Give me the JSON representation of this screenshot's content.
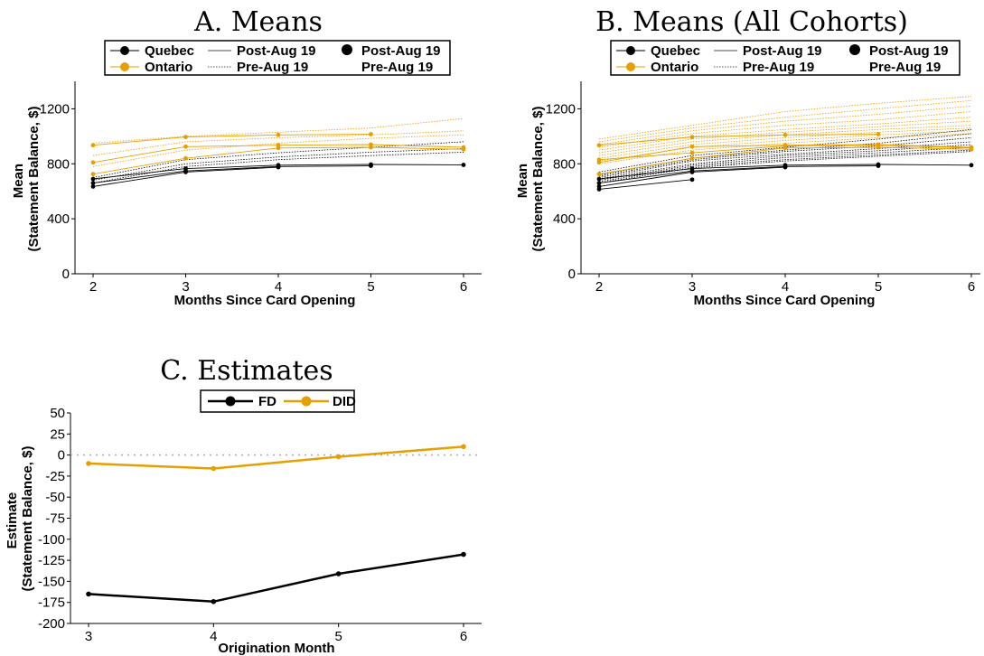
{
  "colors": {
    "quebec": "#000000",
    "ontario": "#E69F00",
    "zero_line": "#aaaaaa"
  },
  "legend_ab": {
    "quebec": "Quebec",
    "ontario": "Ontario",
    "post_line": "Post-Aug 19",
    "pre_line": "Pre-Aug 19",
    "post_dot": "Post-Aug 19",
    "pre_dot": "Pre-Aug 19"
  },
  "chart_data": [
    {
      "id": "A",
      "type": "line",
      "title": "A. Means",
      "xlabel": "Months Since Card Opening",
      "ylabel": "Mean\n(Statement Balance, $)",
      "xlim": [
        2,
        6
      ],
      "ylim": [
        0,
        1400
      ],
      "xticks": [
        "2",
        "3",
        "4",
        "5",
        "6"
      ],
      "yticks": [
        "0",
        "400",
        "800",
        "1200"
      ],
      "grid": false,
      "legend": "top",
      "series": [
        {
          "group": "quebec",
          "style": "post",
          "x": [
            2,
            3,
            4,
            5,
            6
          ],
          "y": [
            690,
            765,
            790,
            795,
            792
          ]
        },
        {
          "group": "quebec",
          "style": "post",
          "x": [
            2,
            3,
            4,
            5
          ],
          "y": [
            660,
            748,
            780,
            785
          ]
        },
        {
          "group": "quebec",
          "style": "post",
          "x": [
            2,
            3,
            4
          ],
          "y": [
            635,
            740,
            775
          ]
        },
        {
          "group": "quebec",
          "style": "pre",
          "x": [
            2,
            3,
            4,
            5,
            6
          ],
          "y": [
            700,
            830,
            880,
            920,
            960
          ]
        },
        {
          "group": "quebec",
          "style": "pre",
          "x": [
            2,
            3,
            4,
            5,
            6
          ],
          "y": [
            680,
            800,
            850,
            885,
            910
          ]
        },
        {
          "group": "quebec",
          "style": "pre",
          "x": [
            2,
            3,
            4,
            5,
            6
          ],
          "y": [
            660,
            780,
            830,
            860,
            885
          ]
        },
        {
          "group": "ontario",
          "style": "post",
          "x": [
            2,
            3,
            4,
            5
          ],
          "y": [
            935,
            995,
            1010,
            1015
          ]
        },
        {
          "group": "ontario",
          "style": "post",
          "x": [
            2,
            3,
            4,
            5,
            6
          ],
          "y": [
            810,
            925,
            935,
            940,
            920
          ]
        },
        {
          "group": "ontario",
          "style": "post",
          "x": [
            2,
            3,
            4,
            5,
            6
          ],
          "y": [
            725,
            840,
            915,
            920,
            905
          ]
        },
        {
          "group": "ontario",
          "style": "pre",
          "x": [
            2,
            3,
            4,
            5,
            6
          ],
          "y": [
            950,
            1000,
            1030,
            1060,
            1130
          ]
        },
        {
          "group": "ontario",
          "style": "pre",
          "x": [
            2,
            3,
            4,
            5,
            6
          ],
          "y": [
            860,
            960,
            990,
            1010,
            1040
          ]
        },
        {
          "group": "ontario",
          "style": "pre",
          "x": [
            2,
            3,
            4,
            5,
            6
          ],
          "y": [
            780,
            900,
            950,
            985,
            1010
          ]
        }
      ]
    },
    {
      "id": "B",
      "type": "line",
      "title": "B. Means (All Cohorts)",
      "xlabel": "Months Since Card Opening",
      "ylabel": "Mean\n(Statement Balance, $)",
      "xlim": [
        2,
        6
      ],
      "ylim": [
        0,
        1400
      ],
      "xticks": [
        "2",
        "3",
        "4",
        "5",
        "6"
      ],
      "yticks": [
        "0",
        "400",
        "800",
        "1200"
      ],
      "grid": false,
      "legend": "top",
      "series": [
        {
          "group": "quebec",
          "style": "post",
          "x": [
            2,
            3,
            4,
            5,
            6
          ],
          "y": [
            690,
            765,
            790,
            795,
            790
          ]
        },
        {
          "group": "quebec",
          "style": "post",
          "x": [
            2,
            3,
            4,
            5
          ],
          "y": [
            660,
            748,
            780,
            785
          ]
        },
        {
          "group": "quebec",
          "style": "post",
          "x": [
            2,
            3,
            4
          ],
          "y": [
            635,
            740,
            775
          ]
        },
        {
          "group": "quebec",
          "style": "post",
          "x": [
            2,
            3
          ],
          "y": [
            615,
            685
          ]
        },
        {
          "group": "quebec",
          "style": "pre",
          "x": [
            2,
            3,
            4,
            5,
            6
          ],
          "y": [
            740,
            860,
            920,
            980,
            1050
          ]
        },
        {
          "group": "quebec",
          "style": "pre",
          "x": [
            2,
            3,
            4,
            5,
            6
          ],
          "y": [
            720,
            840,
            900,
            950,
            1020
          ]
        },
        {
          "group": "quebec",
          "style": "pre",
          "x": [
            2,
            3,
            4,
            5,
            6
          ],
          "y": [
            710,
            830,
            890,
            930,
            990
          ]
        },
        {
          "group": "quebec",
          "style": "pre",
          "x": [
            2,
            3,
            4,
            5,
            6
          ],
          "y": [
            700,
            820,
            870,
            910,
            960
          ]
        },
        {
          "group": "quebec",
          "style": "pre",
          "x": [
            2,
            3,
            4,
            5,
            6
          ],
          "y": [
            690,
            800,
            860,
            895,
            940
          ]
        },
        {
          "group": "quebec",
          "style": "pre",
          "x": [
            2,
            3,
            4,
            5,
            6
          ],
          "y": [
            680,
            790,
            845,
            880,
            920
          ]
        },
        {
          "group": "quebec",
          "style": "pre",
          "x": [
            2,
            3,
            4,
            5,
            6
          ],
          "y": [
            670,
            780,
            830,
            865,
            900
          ]
        },
        {
          "group": "quebec",
          "style": "pre",
          "x": [
            2,
            3,
            4,
            5,
            6
          ],
          "y": [
            660,
            770,
            820,
            855,
            890
          ]
        },
        {
          "group": "ontario",
          "style": "post",
          "x": [
            2,
            3,
            4,
            5
          ],
          "y": [
            935,
            995,
            1010,
            1015
          ]
        },
        {
          "group": "ontario",
          "style": "post",
          "x": [
            2,
            3,
            4,
            5,
            6
          ],
          "y": [
            810,
            925,
            935,
            940,
            920
          ]
        },
        {
          "group": "ontario",
          "style": "post",
          "x": [
            2,
            3,
            4,
            5,
            6
          ],
          "y": [
            725,
            840,
            915,
            920,
            905
          ]
        },
        {
          "group": "ontario",
          "style": "post",
          "x": [
            2,
            3,
            4,
            5,
            6
          ],
          "y": [
            830,
            880,
            930,
            935,
            915
          ]
        },
        {
          "group": "ontario",
          "style": "pre",
          "x": [
            2,
            3,
            4,
            5,
            6
          ],
          "y": [
            980,
            1080,
            1180,
            1240,
            1290
          ]
        },
        {
          "group": "ontario",
          "style": "pre",
          "x": [
            2,
            3,
            4,
            5,
            6
          ],
          "y": [
            960,
            1060,
            1140,
            1200,
            1260
          ]
        },
        {
          "group": "ontario",
          "style": "pre",
          "x": [
            2,
            3,
            4,
            5,
            6
          ],
          "y": [
            940,
            1040,
            1110,
            1160,
            1220
          ]
        },
        {
          "group": "ontario",
          "style": "pre",
          "x": [
            2,
            3,
            4,
            5,
            6
          ],
          "y": [
            920,
            1020,
            1080,
            1120,
            1180
          ]
        },
        {
          "group": "ontario",
          "style": "pre",
          "x": [
            2,
            3,
            4,
            5,
            6
          ],
          "y": [
            900,
            1000,
            1050,
            1090,
            1140
          ]
        },
        {
          "group": "ontario",
          "style": "pre",
          "x": [
            2,
            3,
            4,
            5,
            6
          ],
          "y": [
            880,
            980,
            1030,
            1070,
            1110
          ]
        },
        {
          "group": "ontario",
          "style": "pre",
          "x": [
            2,
            3,
            4,
            5,
            6
          ],
          "y": [
            860,
            960,
            1010,
            1050,
            1080
          ]
        },
        {
          "group": "ontario",
          "style": "pre",
          "x": [
            2,
            3,
            4,
            5,
            6
          ],
          "y": [
            840,
            940,
            990,
            1030,
            1060
          ]
        },
        {
          "group": "ontario",
          "style": "pre",
          "x": [
            2,
            3,
            4,
            5,
            6
          ],
          "y": [
            820,
            920,
            970,
            1010,
            1040
          ]
        },
        {
          "group": "ontario",
          "style": "pre",
          "x": [
            2,
            3,
            4,
            5,
            6
          ],
          "y": [
            800,
            900,
            950,
            990,
            1020
          ]
        }
      ]
    },
    {
      "id": "C",
      "type": "line",
      "title": "C. Estimates",
      "xlabel": "Origination Month",
      "ylabel": "Estimate\n(Statement Balance, $)",
      "xlim": [
        3,
        6
      ],
      "ylim": [
        -200,
        50
      ],
      "xticks": [
        "3",
        "4",
        "5",
        "6"
      ],
      "yticks": [
        "-200",
        "-175",
        "-150",
        "-125",
        "-100",
        "-75",
        "-50",
        "-25",
        "0",
        "25",
        "50"
      ],
      "grid": false,
      "zero_line": true,
      "legend": "top",
      "series": [
        {
          "name": "FD",
          "group": "quebec",
          "x": [
            3,
            4,
            5,
            6
          ],
          "y": [
            -165,
            -174,
            -141,
            -118
          ]
        },
        {
          "name": "DID",
          "group": "ontario",
          "x": [
            3,
            4,
            5,
            6
          ],
          "y": [
            -10,
            -16,
            -2,
            10
          ]
        }
      ]
    }
  ]
}
